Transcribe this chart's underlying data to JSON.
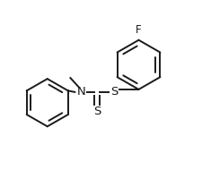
{
  "bg_color": "#ffffff",
  "line_color": "#1a1a1a",
  "line_width": 1.4,
  "font_size": 8.5,
  "figsize": [
    2.25,
    1.9
  ],
  "dpi": 100,
  "xlim": [
    0,
    225
  ],
  "ylim": [
    0,
    190
  ]
}
